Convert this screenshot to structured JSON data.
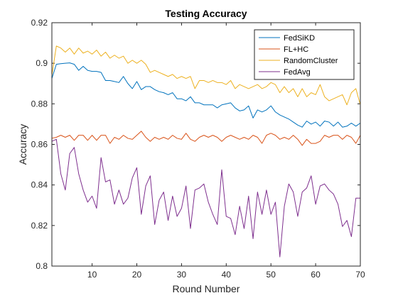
{
  "chart_data": {
    "type": "line",
    "title": "Testing Accuracy",
    "xlabel": "Round Number",
    "ylabel": "Accuracy",
    "xlim": [
      1,
      70
    ],
    "ylim": [
      0.8,
      0.92
    ],
    "xticks": [
      10,
      20,
      30,
      40,
      50,
      60,
      70
    ],
    "xtick_labels": [
      "10",
      "20",
      "30",
      "40",
      "50",
      "60",
      "70"
    ],
    "yticks": [
      0.8,
      0.82,
      0.84,
      0.86,
      0.88,
      0.9,
      0.92
    ],
    "ytick_labels": [
      "0.8",
      "0.82",
      "0.84",
      "0.86",
      "0.88",
      "0.9",
      "0.92"
    ],
    "grid": false,
    "legend_position": "top-right",
    "x": [
      1,
      2,
      3,
      4,
      5,
      6,
      7,
      8,
      9,
      10,
      11,
      12,
      13,
      14,
      15,
      16,
      17,
      18,
      19,
      20,
      21,
      22,
      23,
      24,
      25,
      26,
      27,
      28,
      29,
      30,
      31,
      32,
      33,
      34,
      35,
      36,
      37,
      38,
      39,
      40,
      41,
      42,
      43,
      44,
      45,
      46,
      47,
      48,
      49,
      50,
      51,
      52,
      53,
      54,
      55,
      56,
      57,
      58,
      59,
      60,
      61,
      62,
      63,
      64,
      65,
      66,
      67,
      68,
      69,
      70
    ],
    "series": [
      {
        "name": "FedSiKD",
        "color": "#0072BD",
        "values": [
          0.8925,
          0.8995,
          0.8998,
          0.9,
          0.9002,
          0.8995,
          0.8965,
          0.8985,
          0.8965,
          0.896,
          0.896,
          0.8955,
          0.8915,
          0.8915,
          0.891,
          0.8905,
          0.8935,
          0.89,
          0.8875,
          0.891,
          0.887,
          0.8885,
          0.8885,
          0.887,
          0.886,
          0.8855,
          0.8845,
          0.8855,
          0.8825,
          0.8825,
          0.8815,
          0.8835,
          0.8805,
          0.8805,
          0.8795,
          0.8795,
          0.8795,
          0.878,
          0.8795,
          0.88,
          0.8805,
          0.878,
          0.8765,
          0.877,
          0.879,
          0.873,
          0.877,
          0.876,
          0.877,
          0.879,
          0.876,
          0.8745,
          0.8735,
          0.8725,
          0.871,
          0.8695,
          0.8685,
          0.8715,
          0.87,
          0.871,
          0.869,
          0.8715,
          0.871,
          0.869,
          0.871,
          0.8685,
          0.869,
          0.8705,
          0.869,
          0.8705
        ]
      },
      {
        "name": "FL+HC",
        "color": "#D95319",
        "values": [
          0.863,
          0.8635,
          0.8645,
          0.8635,
          0.8645,
          0.862,
          0.8645,
          0.8645,
          0.862,
          0.8645,
          0.862,
          0.8645,
          0.8645,
          0.8605,
          0.8635,
          0.8625,
          0.8645,
          0.863,
          0.8625,
          0.8645,
          0.8665,
          0.8635,
          0.8615,
          0.8635,
          0.8625,
          0.8635,
          0.8625,
          0.8645,
          0.863,
          0.8625,
          0.8655,
          0.8625,
          0.8615,
          0.8635,
          0.8645,
          0.8635,
          0.8645,
          0.8635,
          0.8615,
          0.8635,
          0.8645,
          0.8635,
          0.8625,
          0.8635,
          0.8625,
          0.8645,
          0.8635,
          0.8605,
          0.8645,
          0.8655,
          0.8645,
          0.8625,
          0.8635,
          0.8625,
          0.8645,
          0.8625,
          0.8595,
          0.8625,
          0.8605,
          0.8605,
          0.8615,
          0.8645,
          0.8635,
          0.8645,
          0.8645,
          0.8625,
          0.8645,
          0.8635,
          0.8605,
          0.8645
        ]
      },
      {
        "name": "RandomCluster",
        "color": "#EDB120",
        "values": [
          0.894,
          0.9085,
          0.9075,
          0.9055,
          0.9075,
          0.9045,
          0.9075,
          0.905,
          0.906,
          0.9045,
          0.9065,
          0.9035,
          0.9055,
          0.9025,
          0.904,
          0.9025,
          0.9035,
          0.9,
          0.9015,
          0.9,
          0.9015,
          0.8995,
          0.8955,
          0.8965,
          0.8955,
          0.8945,
          0.8935,
          0.8945,
          0.8925,
          0.8935,
          0.8925,
          0.8935,
          0.8875,
          0.8915,
          0.8915,
          0.8905,
          0.8915,
          0.8905,
          0.8905,
          0.8895,
          0.8915,
          0.8875,
          0.8895,
          0.8885,
          0.8875,
          0.8885,
          0.8895,
          0.8875,
          0.8885,
          0.8905,
          0.8895,
          0.8855,
          0.8885,
          0.8855,
          0.8875,
          0.8835,
          0.8875,
          0.8835,
          0.8855,
          0.8845,
          0.8895,
          0.8835,
          0.8815,
          0.8825,
          0.8835,
          0.8845,
          0.8795,
          0.8855,
          0.8875,
          0.8795
        ]
      },
      {
        "name": "FedAvg",
        "color": "#7E2F8E",
        "values": [
          0.8615,
          0.8625,
          0.8455,
          0.8375,
          0.8555,
          0.8585,
          0.8455,
          0.8375,
          0.8315,
          0.8345,
          0.8285,
          0.8535,
          0.8415,
          0.8425,
          0.8305,
          0.8375,
          0.8305,
          0.8335,
          0.8435,
          0.8485,
          0.8255,
          0.8395,
          0.8445,
          0.8205,
          0.8325,
          0.8365,
          0.8225,
          0.8345,
          0.8245,
          0.8285,
          0.8395,
          0.8185,
          0.8375,
          0.8385,
          0.8405,
          0.8315,
          0.8255,
          0.8205,
          0.8475,
          0.8245,
          0.8235,
          0.8155,
          0.8295,
          0.8185,
          0.8345,
          0.8135,
          0.8365,
          0.8255,
          0.8375,
          0.8255,
          0.8315,
          0.8045,
          0.8295,
          0.8405,
          0.8365,
          0.8245,
          0.8365,
          0.8385,
          0.8445,
          0.8305,
          0.8395,
          0.8405,
          0.8375,
          0.8355,
          0.8305,
          0.8195,
          0.8225,
          0.8145,
          0.8335,
          0.8335
        ]
      }
    ]
  }
}
